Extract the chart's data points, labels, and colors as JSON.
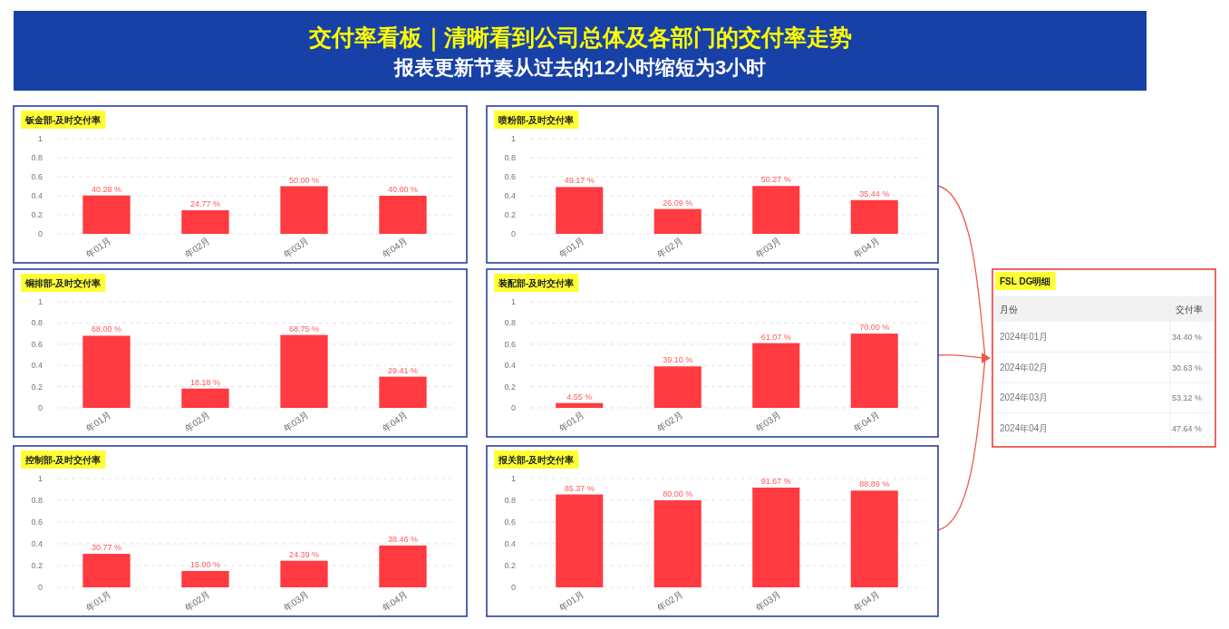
{
  "chart_data": [
    {
      "type": "other",
      "title": "交付率看板｜清晰看到公司总体及各部门的交付率走势",
      "subtitle": "报表更新节奏从过去的12小时缩短为3小时"
    },
    {
      "type": "bar",
      "title": "钣金部-及时交付率",
      "categories": [
        "年01月",
        "年02月",
        "年03月",
        "年04月"
      ],
      "values": [
        0.4028,
        0.2477,
        0.5,
        0.4
      ],
      "value_labels": [
        "40.28 %",
        "24.77 %",
        "50.00 %",
        "40.00 %"
      ],
      "color": "#ff3a40",
      "ylim": [
        0,
        1
      ],
      "yticks": [
        0,
        0.2,
        0.4,
        0.6,
        0.8,
        1
      ],
      "grid": "y"
    },
    {
      "type": "bar",
      "title": "喷粉部-及时交付率",
      "categories": [
        "年01月",
        "年02月",
        "年03月",
        "年04月"
      ],
      "values": [
        0.4917,
        0.2609,
        0.5027,
        0.3544
      ],
      "value_labels": [
        "49.17 %",
        "26.09 %",
        "50.27 %",
        "35.44 %"
      ],
      "color": "#ff3a40",
      "ylim": [
        0,
        1
      ],
      "yticks": [
        0,
        0.2,
        0.4,
        0.6,
        0.8,
        1
      ],
      "grid": "y"
    },
    {
      "type": "bar",
      "title": "铜排部-及时交付率",
      "categories": [
        "年01月",
        "年02月",
        "年03月",
        "年04月"
      ],
      "values": [
        0.68,
        0.1818,
        0.6875,
        0.2941
      ],
      "value_labels": [
        "68.00 %",
        "18.18 %",
        "68.75 %",
        "29.41 %"
      ],
      "color": "#ff3a40",
      "ylim": [
        0,
        1
      ],
      "yticks": [
        0,
        0.2,
        0.4,
        0.6,
        0.8,
        1
      ],
      "grid": "y"
    },
    {
      "type": "bar",
      "title": "装配部-及时交付率",
      "categories": [
        "年01月",
        "年02月",
        "年03月",
        "年04月"
      ],
      "values": [
        0.0455,
        0.391,
        0.6107,
        0.7
      ],
      "value_labels": [
        "4.55 %",
        "39.10 %",
        "61.07 %",
        "70.00 %"
      ],
      "color": "#ff3a40",
      "ylim": [
        0,
        1
      ],
      "yticks": [
        0,
        0.2,
        0.4,
        0.6,
        0.8,
        1
      ],
      "grid": "y"
    },
    {
      "type": "bar",
      "title": "控制部-及时交付率",
      "categories": [
        "年01月",
        "年02月",
        "年03月",
        "年04月"
      ],
      "values": [
        0.3077,
        0.15,
        0.2439,
        0.3846
      ],
      "value_labels": [
        "30.77 %",
        "15.00 %",
        "24.39 %",
        "38.46 %"
      ],
      "color": "#ff3a40",
      "ylim": [
        0,
        1
      ],
      "yticks": [
        0,
        0.2,
        0.4,
        0.6,
        0.8,
        1
      ],
      "grid": "y"
    },
    {
      "type": "bar",
      "title": "报关部-及时交付率",
      "categories": [
        "年01月",
        "年02月",
        "年03月",
        "年04月"
      ],
      "values": [
        0.8537,
        0.8,
        0.9167,
        0.8889
      ],
      "value_labels": [
        "85.37 %",
        "80.00 %",
        "91.67 %",
        "88.89 %"
      ],
      "color": "#ff3a40",
      "ylim": [
        0,
        1
      ],
      "yticks": [
        0,
        0.2,
        0.4,
        0.6,
        0.8,
        1
      ],
      "grid": "y"
    },
    {
      "type": "other",
      "title": "FSL DG明细",
      "xlabel": "月份",
      "ylabel": "交付率",
      "categories": [
        "2024年01月",
        "2024年02月",
        "2024年03月",
        "2024年04月"
      ],
      "values": [
        34.4,
        30.63,
        53.12,
        47.64
      ],
      "value_labels": [
        "34.40 %",
        "30.63 %",
        "53.12 %",
        "47.64 %"
      ]
    }
  ]
}
